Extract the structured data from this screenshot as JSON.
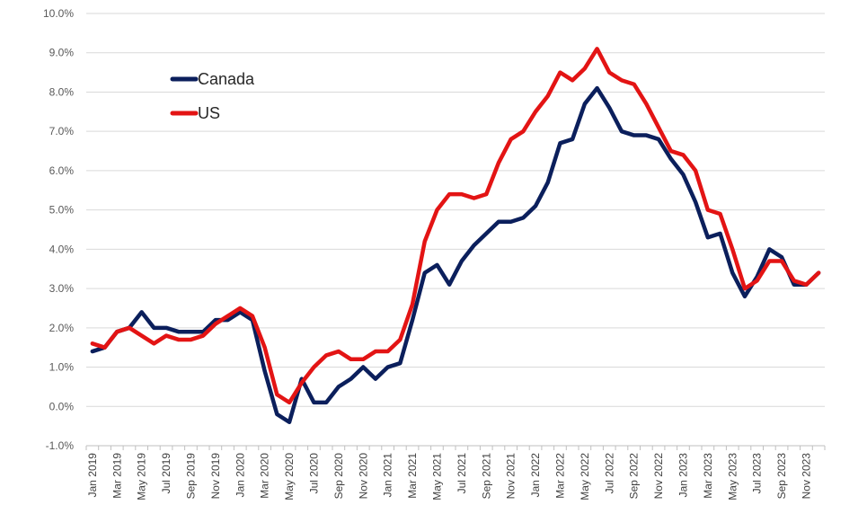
{
  "chart_data": {
    "type": "line",
    "title": "",
    "xlabel": "",
    "ylabel": "",
    "ylim": [
      -1.0,
      10.0
    ],
    "y_ticks": [
      "-1.0%",
      "0.0%",
      "1.0%",
      "2.0%",
      "3.0%",
      "4.0%",
      "5.0%",
      "6.0%",
      "7.0%",
      "8.0%",
      "9.0%",
      "10.0%"
    ],
    "grid": true,
    "legend_position": "top-left",
    "x": [
      "Jan 2019",
      "Feb 2019",
      "Mar 2019",
      "Apr 2019",
      "May 2019",
      "Jun 2019",
      "Jul 2019",
      "Aug 2019",
      "Sep 2019",
      "Oct 2019",
      "Nov 2019",
      "Dec 2019",
      "Jan 2020",
      "Feb 2020",
      "Mar 2020",
      "Apr 2020",
      "May 2020",
      "Jun 2020",
      "Jul 2020",
      "Aug 2020",
      "Sep 2020",
      "Oct 2020",
      "Nov 2020",
      "Dec 2020",
      "Jan 2021",
      "Feb 2021",
      "Mar 2021",
      "Apr 2021",
      "May 2021",
      "Jun 2021",
      "Jul 2021",
      "Aug 2021",
      "Sep 2021",
      "Oct 2021",
      "Nov 2021",
      "Dec 2021",
      "Jan 2022",
      "Feb 2022",
      "Mar 2022",
      "Apr 2022",
      "May 2022",
      "Jun 2022",
      "Jul 2022",
      "Aug 2022",
      "Sep 2022",
      "Oct 2022",
      "Nov 2022",
      "Dec 2022",
      "Jan 2023",
      "Feb 2023",
      "Mar 2023",
      "Apr 2023",
      "May 2023",
      "Jun 2023",
      "Jul 2023",
      "Aug 2023",
      "Sep 2023",
      "Oct 2023",
      "Nov 2023",
      "Dec 2023"
    ],
    "x_tick_labels": [
      "Jan 2019",
      "Mar 2019",
      "May 2019",
      "Jul 2019",
      "Sep 2019",
      "Nov 2019",
      "Jan 2020",
      "Mar 2020",
      "May 2020",
      "Jul 2020",
      "Sep 2020",
      "Nov 2020",
      "Jan 2021",
      "Mar 2021",
      "May 2021",
      "Jul 2021",
      "Sep 2021",
      "Nov 2021",
      "Jan 2022",
      "Mar 2022",
      "May 2022",
      "Jul 2022",
      "Sep 2022",
      "Nov 2022",
      "Jan 2023",
      "Mar 2023",
      "May 2023",
      "Jul 2023",
      "Sep 2023",
      "Nov 2023"
    ],
    "series": [
      {
        "name": "Canada",
        "color": "#0b1f5c",
        "values": [
          1.4,
          1.5,
          1.9,
          2.0,
          2.4,
          2.0,
          2.0,
          1.9,
          1.9,
          1.9,
          2.2,
          2.2,
          2.4,
          2.2,
          0.9,
          -0.2,
          -0.4,
          0.7,
          0.1,
          0.1,
          0.5,
          0.7,
          1.0,
          0.7,
          1.0,
          1.1,
          2.2,
          3.4,
          3.6,
          3.1,
          3.7,
          4.1,
          4.4,
          4.7,
          4.7,
          4.8,
          5.1,
          5.7,
          6.7,
          6.8,
          7.7,
          8.1,
          7.6,
          7.0,
          6.9,
          6.9,
          6.8,
          6.3,
          5.9,
          5.2,
          4.3,
          4.4,
          3.4,
          2.8,
          3.3,
          4.0,
          3.8,
          3.1,
          3.1,
          3.4
        ]
      },
      {
        "name": "US",
        "color": "#e31414",
        "values": [
          1.6,
          1.5,
          1.9,
          2.0,
          1.8,
          1.6,
          1.8,
          1.7,
          1.7,
          1.8,
          2.1,
          2.3,
          2.5,
          2.3,
          1.5,
          0.3,
          0.1,
          0.6,
          1.0,
          1.3,
          1.4,
          1.2,
          1.2,
          1.4,
          1.4,
          1.7,
          2.6,
          4.2,
          5.0,
          5.4,
          5.4,
          5.3,
          5.4,
          6.2,
          6.8,
          7.0,
          7.5,
          7.9,
          8.5,
          8.3,
          8.6,
          9.1,
          8.5,
          8.3,
          8.2,
          7.7,
          7.1,
          6.5,
          6.4,
          6.0,
          5.0,
          4.9,
          4.0,
          3.0,
          3.2,
          3.7,
          3.7,
          3.2,
          3.1,
          3.4
        ]
      }
    ]
  }
}
